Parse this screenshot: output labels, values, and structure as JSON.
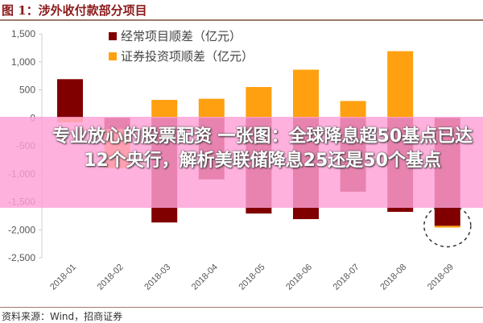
{
  "figure_title": "图 1：涉外收付款部分项目",
  "source": "资料来源：Wind，招商证券",
  "banner_text": "专业放心的股票配资 一张图：全球降息超50基点已达12个央行，解析美联储降息25还是50个基点",
  "chart_data": {
    "type": "bar",
    "stacked": true,
    "categories": [
      "2018-01",
      "2018-02",
      "2018-03",
      "2018-04",
      "2018-05",
      "2018-06",
      "2018-07",
      "2018-08",
      "2018-09"
    ],
    "series": [
      {
        "name": "经常项目顺差（亿元）",
        "color": "#800000",
        "values": [
          690,
          -200,
          -1870,
          -1100,
          -1710,
          -1810,
          -1320,
          -1680,
          -1930
        ]
      },
      {
        "name": "证券投资项顺差（亿元）",
        "color": "#ffa010",
        "values": [
          -80,
          -700,
          320,
          340,
          550,
          860,
          300,
          1190,
          -30
        ]
      }
    ],
    "ylim": [
      -2500,
      1500
    ],
    "yticks": [
      1500,
      1000,
      500,
      0,
      -500,
      -1000,
      -1500,
      -2000,
      -2500
    ],
    "ytick_labels": [
      "1,500",
      "1,000",
      "500",
      "0",
      "-500",
      "-1,000",
      "-1,500",
      "-2,000",
      "-2,500"
    ],
    "legend_position": "top-left",
    "annotation": "dashed circle around 2018-09",
    "grid": false
  }
}
